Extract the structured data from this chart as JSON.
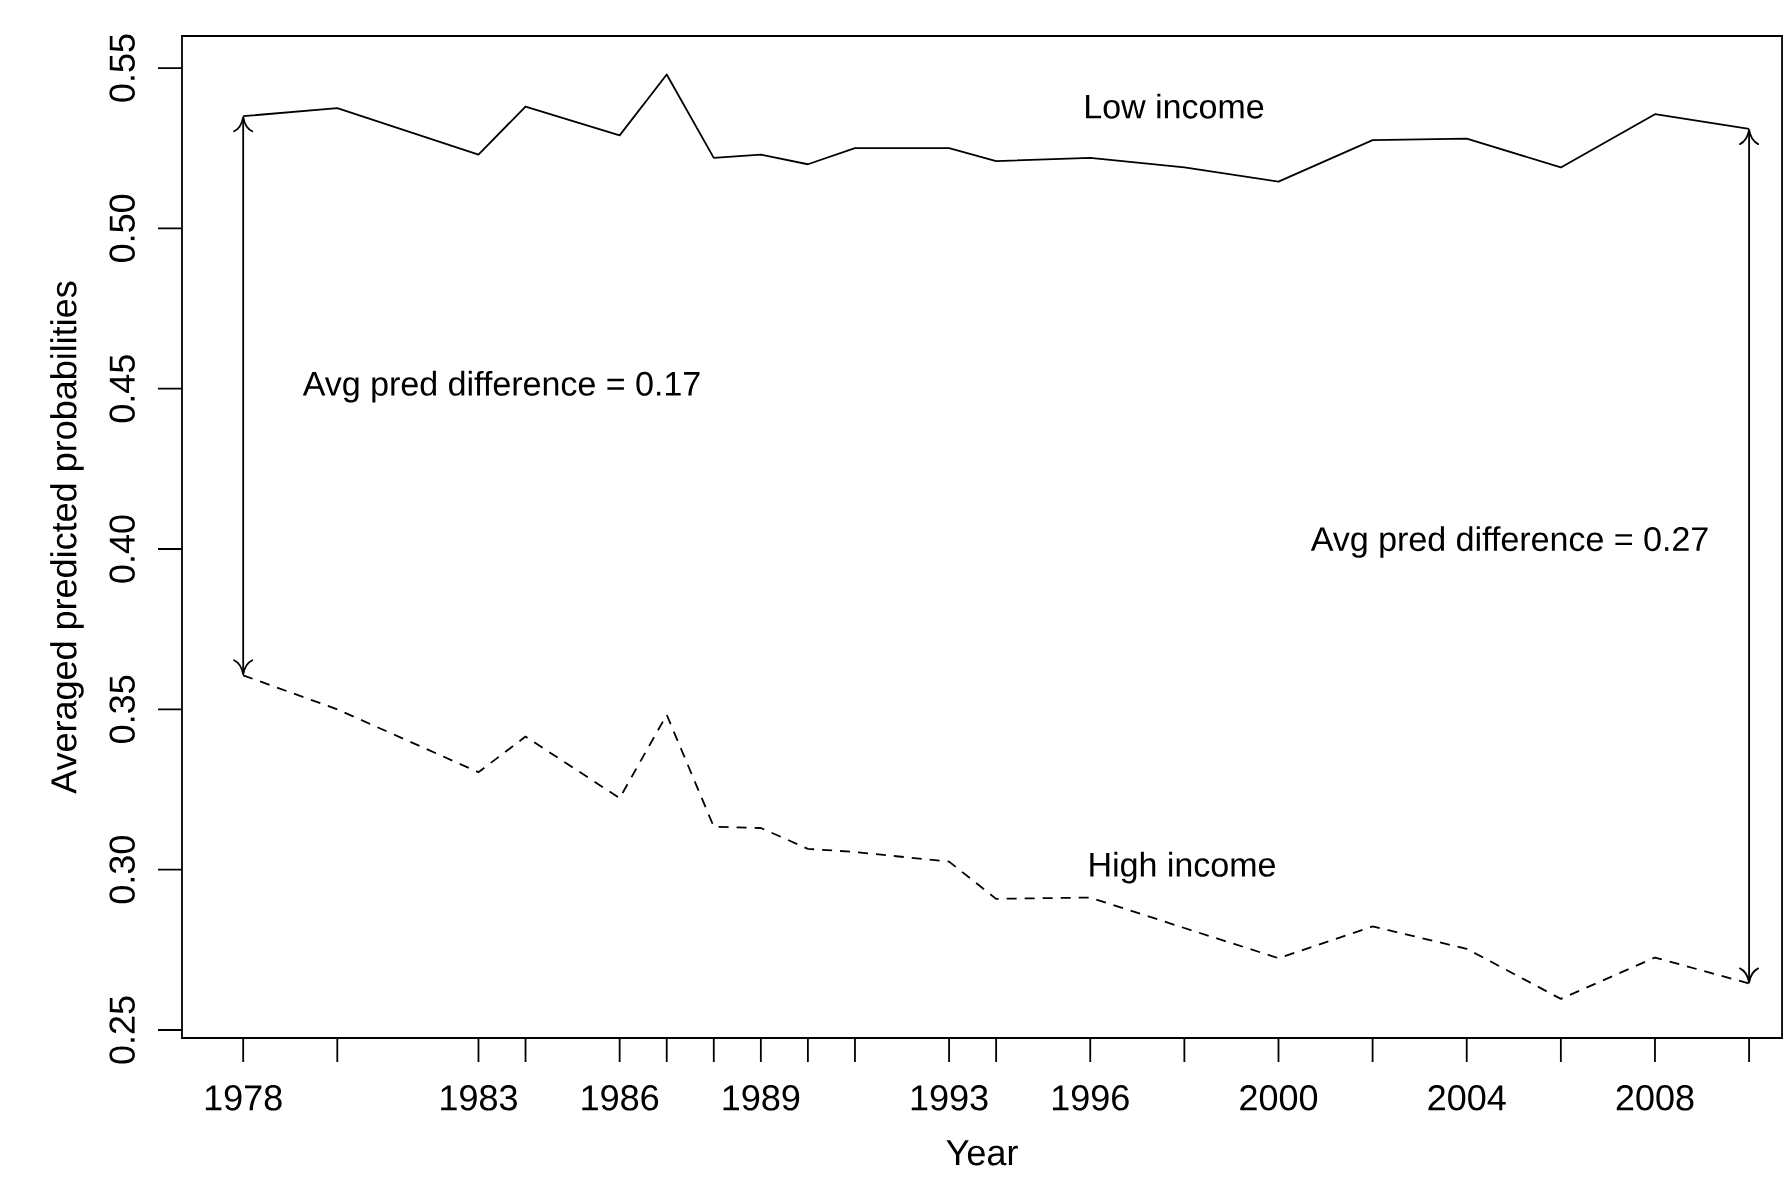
{
  "chart_data": {
    "type": "line",
    "xlabel": "Year",
    "ylabel": "Averaged predicted probabilities",
    "x": [
      1978,
      1980,
      1983,
      1984,
      1986,
      1987,
      1988,
      1989,
      1990,
      1991,
      1993,
      1994,
      1996,
      1998,
      2000,
      2002,
      2004,
      2006,
      2008,
      2010
    ],
    "series": [
      {
        "color": "#000000",
        "line_style": "solid",
        "values": [
          0.535,
          0.5375,
          0.523,
          0.538,
          0.529,
          0.548,
          0.522,
          0.523,
          0.52,
          0.525,
          0.525,
          0.521,
          0.522,
          0.519,
          0.5146,
          0.5275,
          0.528,
          0.519,
          0.5356,
          0.531
        ]
      },
      {
        "color": "#000000",
        "line_style": "dashed",
        "values": [
          0.3606,
          0.35,
          0.3304,
          0.3415,
          0.3223,
          0.3483,
          0.3134,
          0.313,
          0.3065,
          0.3055,
          0.3025,
          0.2909,
          0.2913,
          0.2818,
          0.2724,
          0.2823,
          0.2753,
          0.2597,
          0.2726,
          0.2645
        ]
      }
    ],
    "annotations": [
      "Low income",
      "High income",
      "Avg pred difference = 0.17",
      "Avg pred difference = 0.27"
    ],
    "xlim": [
      1976.7,
      2010.7
    ],
    "ylim": [
      0.2475,
      0.56
    ],
    "xticks": [
      1978,
      {
        "value": 1980,
        "label": null
      },
      1983,
      {
        "value": 1984,
        "label": null
      },
      1986,
      {
        "value": 1987,
        "label": null
      },
      {
        "value": 1988,
        "label": null
      },
      1989,
      {
        "value": 1990,
        "label": null
      },
      {
        "value": 1991,
        "label": null
      },
      1993,
      {
        "value": 1994,
        "label": null
      },
      1996,
      {
        "value": 1998,
        "label": null
      },
      2000,
      {
        "value": 2002,
        "label": null
      },
      2004,
      {
        "value": 2006,
        "label": null
      },
      2008,
      {
        "value": 2010,
        "label": null
      }
    ],
    "yticks": [
      0.25,
      {
        "value": 0.3,
        "label": "0.30"
      },
      0.35,
      {
        "value": 0.4,
        "label": "0.40"
      },
      0.45,
      {
        "value": 0.5,
        "label": "0.50"
      },
      0.55
    ],
    "tick_labels": true
  }
}
